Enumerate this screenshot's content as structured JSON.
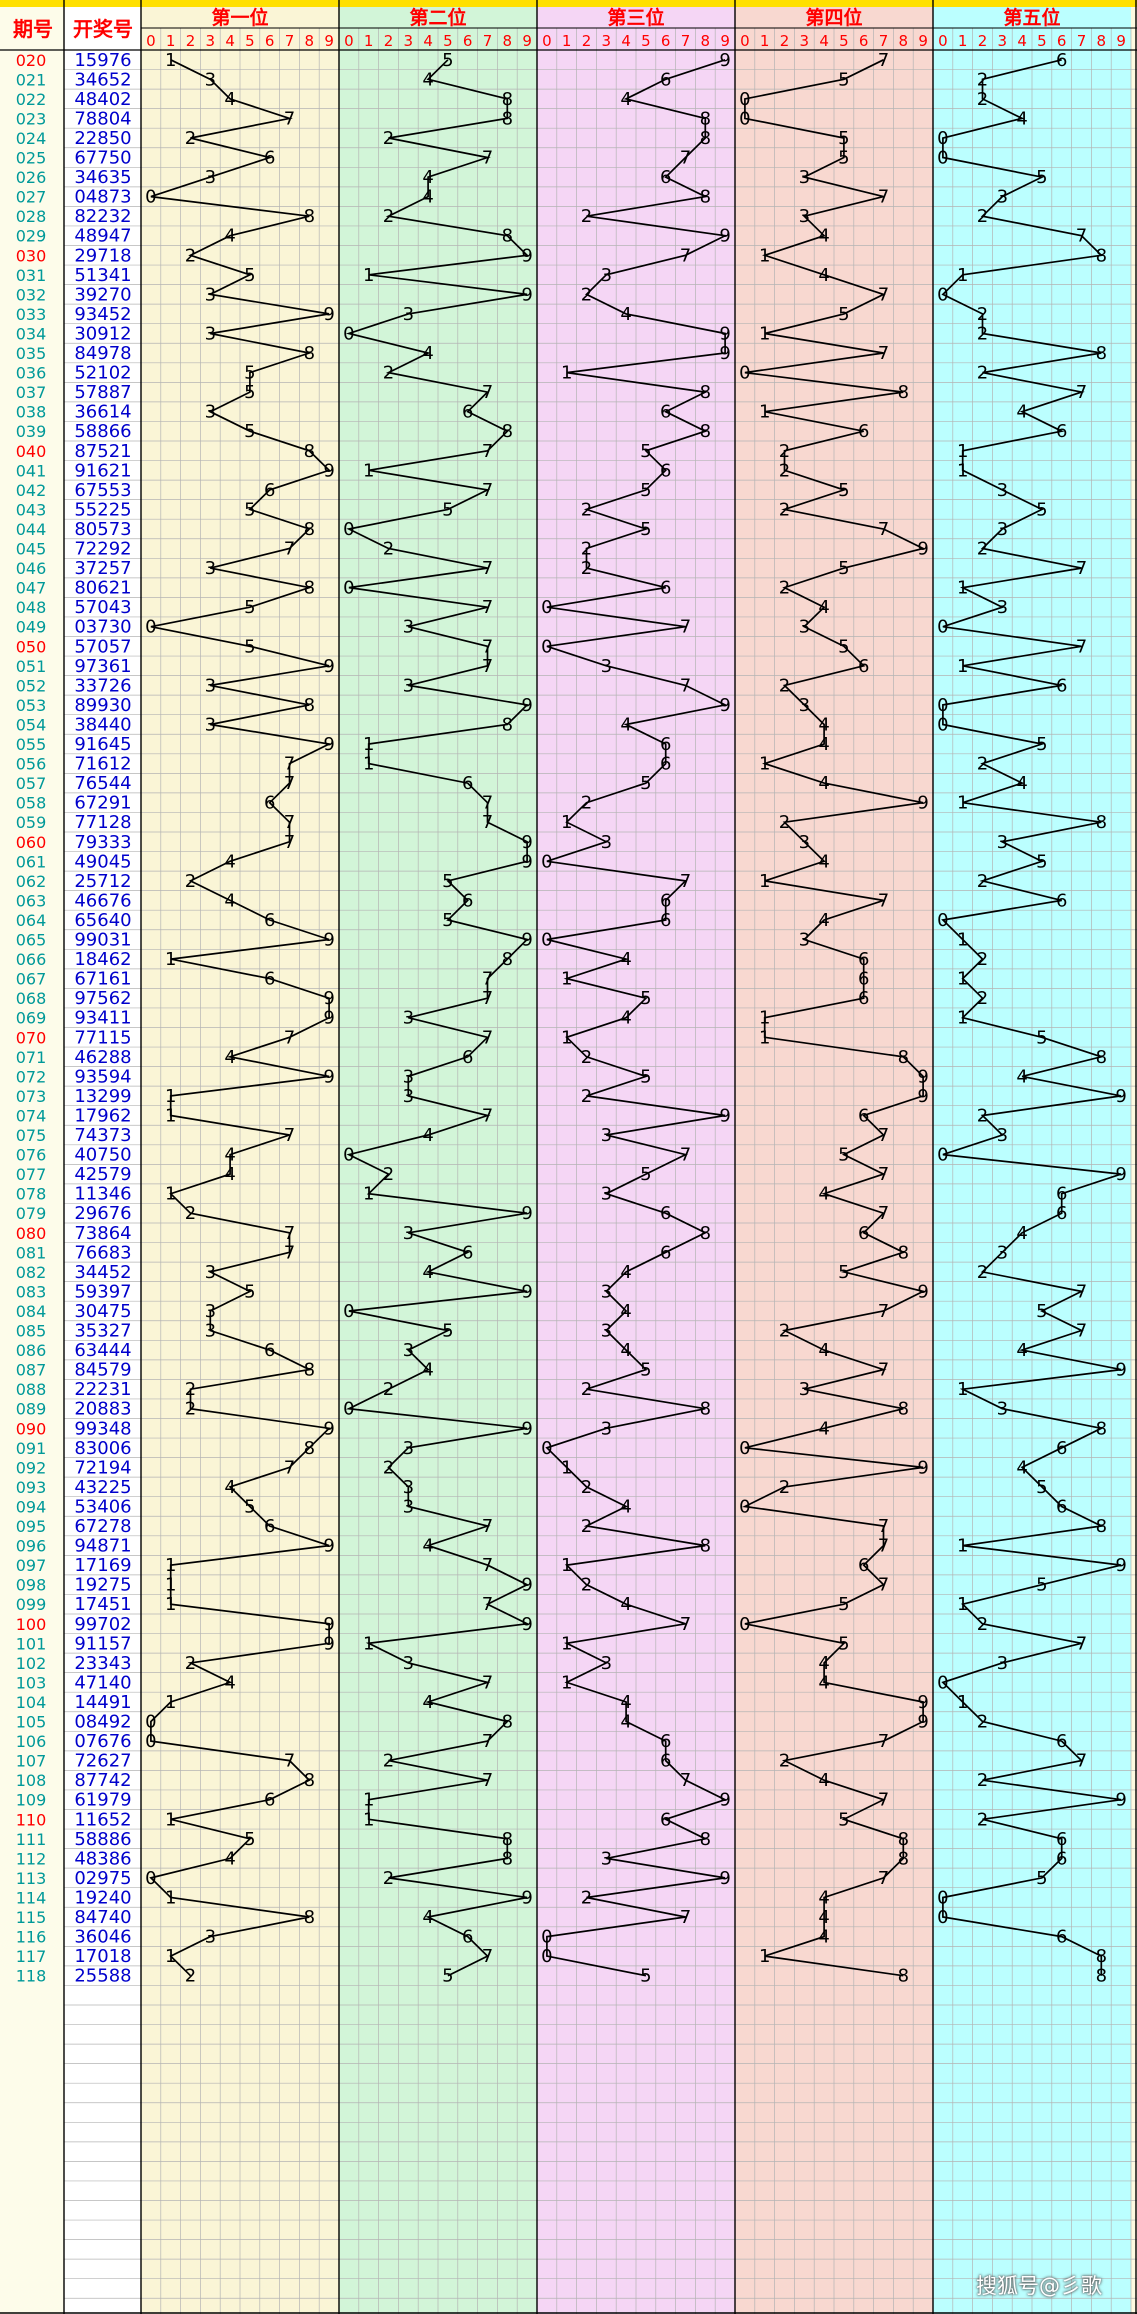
{
  "header": {
    "period_label": "期号",
    "draw_label": "开奖号",
    "position_titles": [
      "第一位",
      "第二位",
      "第三位",
      "第四位",
      "第五位"
    ],
    "digit_labels": [
      "0",
      "1",
      "2",
      "3",
      "4",
      "5",
      "6",
      "7",
      "8",
      "9"
    ]
  },
  "watermark": "搜狐号@彡歌",
  "colors": {
    "title_red": "#ff0000",
    "digit_blue": "#0000cc",
    "period_teal": "#009999",
    "period_red": "#ff0000",
    "column_backgrounds": [
      "#faf5d6",
      "#d2f5d8",
      "#f5d6f5",
      "#f8d8d0",
      "#bbffff"
    ],
    "left_background": "#fdfcea",
    "grid_line": "#b4b4b4"
  },
  "chart_data": {
    "type": "line",
    "x_label": "期号",
    "periods": [
      "020",
      "021",
      "022",
      "023",
      "024",
      "025",
      "026",
      "027",
      "028",
      "029",
      "030",
      "031",
      "032",
      "033",
      "034",
      "035",
      "036",
      "037",
      "038",
      "039",
      "040",
      "041",
      "042",
      "043",
      "044",
      "045",
      "046",
      "047",
      "048",
      "049",
      "050",
      "051",
      "052",
      "053",
      "054",
      "055",
      "056",
      "057",
      "058",
      "059",
      "060",
      "061",
      "062",
      "063",
      "064",
      "065",
      "066",
      "067",
      "068",
      "069",
      "070",
      "071",
      "072",
      "073",
      "074",
      "075",
      "076",
      "077",
      "078",
      "079",
      "080",
      "081",
      "082",
      "083",
      "084",
      "085",
      "086",
      "087",
      "088",
      "089",
      "090",
      "091",
      "092",
      "093",
      "094",
      "095",
      "096",
      "097",
      "098",
      "099",
      "100",
      "101",
      "102",
      "103",
      "104",
      "105",
      "106",
      "107",
      "108",
      "109",
      "110",
      "111",
      "112",
      "113",
      "114",
      "115",
      "116",
      "117",
      "118"
    ],
    "draws": [
      "15976",
      "34652",
      "48402",
      "78804",
      "22850",
      "67750",
      "34635",
      "04873",
      "82232",
      "48947",
      "29718",
      "51341",
      "39270",
      "93452",
      "30912",
      "84978",
      "52102",
      "57887",
      "36614",
      "58866",
      "87521",
      "91621",
      "67553",
      "55225",
      "80573",
      "72292",
      "37257",
      "80621",
      "57043",
      "03730",
      "57057",
      "97361",
      "33726",
      "89930",
      "38440",
      "91645",
      "71612",
      "76544",
      "67291",
      "77128",
      "79333",
      "49045",
      "25712",
      "46676",
      "65640",
      "99031",
      "18462",
      "67161",
      "97562",
      "93411",
      "77115",
      "46288",
      "93594",
      "13299",
      "17962",
      "74373",
      "40750",
      "42579",
      "11346",
      "29676",
      "73864",
      "76683",
      "34452",
      "59397",
      "30475",
      "35327",
      "63444",
      "84579",
      "22231",
      "20883",
      "99348",
      "83006",
      "72194",
      "43225",
      "53406",
      "67278",
      "94871",
      "17169",
      "19275",
      "17451",
      "99702",
      "91157",
      "23343",
      "47140",
      "14491",
      "08492",
      "07676",
      "72627",
      "87742",
      "61979",
      "11652",
      "58886",
      "48386",
      "02975",
      "19240",
      "84740",
      "36046",
      "17018",
      "25588"
    ],
    "series_names": [
      "第一位",
      "第二位",
      "第三位",
      "第四位",
      "第五位"
    ],
    "y_range": [
      0,
      9
    ],
    "highlighted_every": 10
  }
}
